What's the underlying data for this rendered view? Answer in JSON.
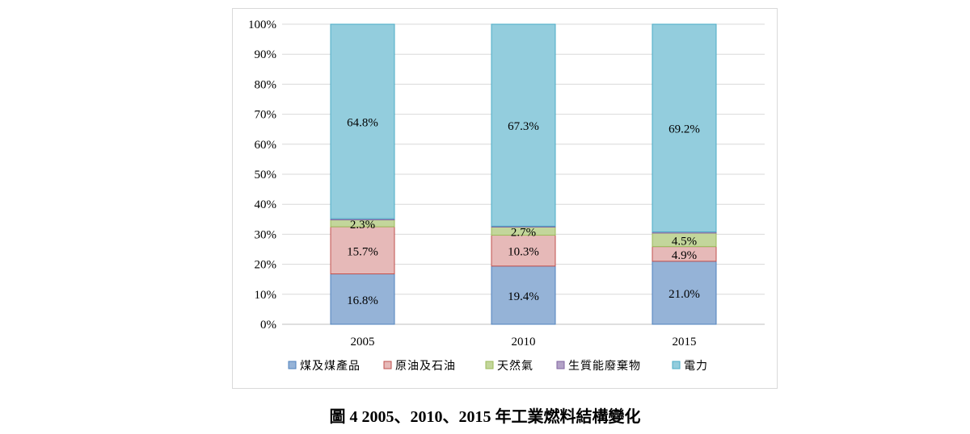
{
  "caption": "圖 4 2005、2010、2015 年工業燃料結構變化",
  "chart_data": {
    "type": "bar",
    "stacked": true,
    "percent_stacked": true,
    "categories": [
      "2005",
      "2010",
      "2015"
    ],
    "series": [
      {
        "name": "煤及煤產品",
        "values": [
          16.8,
          19.4,
          21.0
        ],
        "labels": [
          "16.8%",
          "19.4%",
          "21.0%"
        ],
        "color": "#95b3d7"
      },
      {
        "name": "原油及石油",
        "values": [
          15.7,
          10.3,
          4.9
        ],
        "labels": [
          "15.7%",
          "10.3%",
          "4.9%"
        ],
        "color": "#e6b9b8"
      },
      {
        "name": "天然氣",
        "values": [
          2.3,
          2.7,
          4.5
        ],
        "labels": [
          "2.3%",
          "2.7%",
          "4.5%"
        ],
        "color": "#c3d69b"
      },
      {
        "name": "生質能廢棄物",
        "values": [
          0.4,
          0.3,
          0.4
        ],
        "labels": [
          "",
          "",
          ""
        ],
        "color": "#b3a2c7"
      },
      {
        "name": "電力",
        "values": [
          64.8,
          67.3,
          69.2
        ],
        "labels": [
          "64.8%",
          "67.3%",
          "69.2%"
        ],
        "color": "#93cddd"
      }
    ],
    "ylim": [
      0,
      100
    ],
    "yticks": [
      "0%",
      "10%",
      "20%",
      "30%",
      "40%",
      "50%",
      "60%",
      "70%",
      "80%",
      "90%",
      "100%"
    ],
    "grid": true,
    "legend": "bottom",
    "xlabel": "",
    "ylabel": ""
  }
}
